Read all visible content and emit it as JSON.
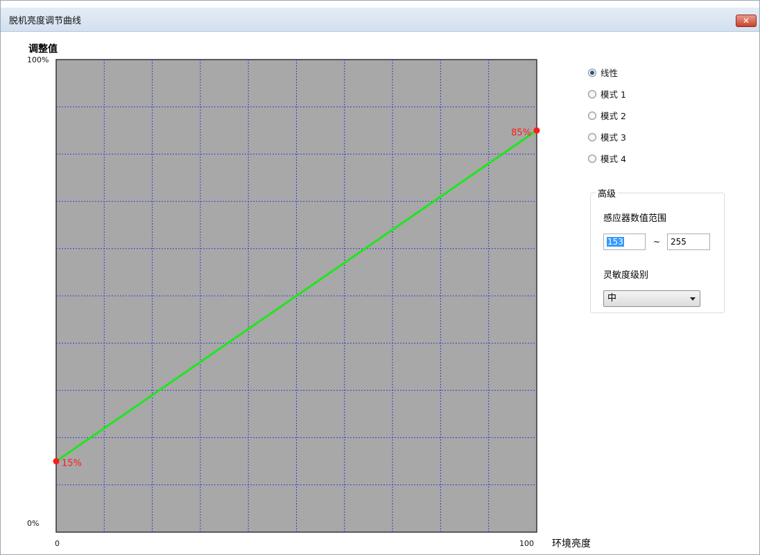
{
  "window": {
    "title": "脱机亮度调节曲线",
    "close_label": "✕"
  },
  "axes": {
    "y_title": "调整值",
    "y_max_label": "100%",
    "y_min_label": "0%",
    "x_min_label": "0",
    "x_max_label": "100",
    "x_title": "环境亮度"
  },
  "chart_data": {
    "type": "line",
    "title": "",
    "xlabel": "环境亮度",
    "ylabel": "调整值",
    "xlim": [
      0,
      100
    ],
    "ylim": [
      0,
      100
    ],
    "grid": true,
    "grid_divisions_x": 10,
    "grid_divisions_y": 10,
    "background_color": "#a8a8a8",
    "grid_color": "#3a3ad6",
    "line_color": "#1ee61e",
    "point_color": "#ff1a1a",
    "series": [
      {
        "values": [
          [
            0,
            15
          ],
          [
            100,
            85
          ]
        ]
      }
    ],
    "point_labels": [
      "15%",
      "85%"
    ]
  },
  "modes": {
    "selected": 0,
    "options": [
      "线性",
      "模式 1",
      "模式 2",
      "模式 3",
      "模式 4"
    ]
  },
  "advanced": {
    "group_title": "高级",
    "range_label": "感应器数值范围",
    "range_min": "153",
    "range_separator": "~",
    "range_max": "255",
    "sensitivity_label": "灵敏度级别",
    "sensitivity_value": "中"
  }
}
